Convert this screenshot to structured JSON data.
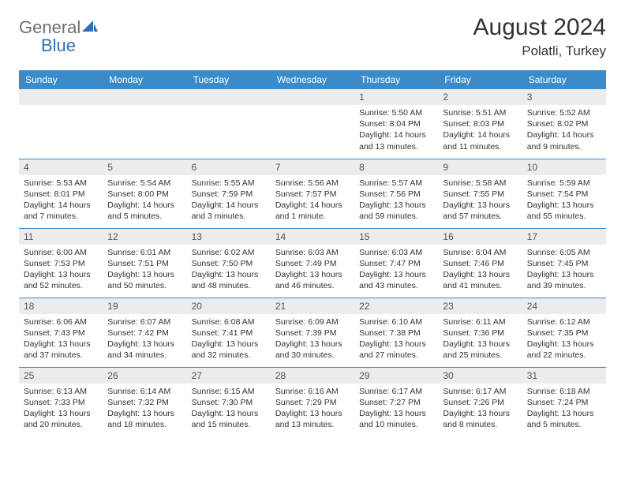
{
  "logo": {
    "text1": "General",
    "text2": "Blue"
  },
  "title": "August 2024",
  "location": "Polatli, Turkey",
  "colors": {
    "header_bg": "#3b8bca",
    "header_text": "#ffffff",
    "daynum_bg": "#ececec",
    "border": "#3b8bca",
    "logo_gray": "#6e6e6e",
    "logo_blue": "#2f6fb5"
  },
  "day_labels": [
    "Sunday",
    "Monday",
    "Tuesday",
    "Wednesday",
    "Thursday",
    "Friday",
    "Saturday"
  ],
  "weeks": [
    [
      {
        "n": "",
        "sr": "",
        "ss": "",
        "dl": ""
      },
      {
        "n": "",
        "sr": "",
        "ss": "",
        "dl": ""
      },
      {
        "n": "",
        "sr": "",
        "ss": "",
        "dl": ""
      },
      {
        "n": "",
        "sr": "",
        "ss": "",
        "dl": ""
      },
      {
        "n": "1",
        "sr": "Sunrise: 5:50 AM",
        "ss": "Sunset: 8:04 PM",
        "dl": "Daylight: 14 hours and 13 minutes."
      },
      {
        "n": "2",
        "sr": "Sunrise: 5:51 AM",
        "ss": "Sunset: 8:03 PM",
        "dl": "Daylight: 14 hours and 11 minutes."
      },
      {
        "n": "3",
        "sr": "Sunrise: 5:52 AM",
        "ss": "Sunset: 8:02 PM",
        "dl": "Daylight: 14 hours and 9 minutes."
      }
    ],
    [
      {
        "n": "4",
        "sr": "Sunrise: 5:53 AM",
        "ss": "Sunset: 8:01 PM",
        "dl": "Daylight: 14 hours and 7 minutes."
      },
      {
        "n": "5",
        "sr": "Sunrise: 5:54 AM",
        "ss": "Sunset: 8:00 PM",
        "dl": "Daylight: 14 hours and 5 minutes."
      },
      {
        "n": "6",
        "sr": "Sunrise: 5:55 AM",
        "ss": "Sunset: 7:59 PM",
        "dl": "Daylight: 14 hours and 3 minutes."
      },
      {
        "n": "7",
        "sr": "Sunrise: 5:56 AM",
        "ss": "Sunset: 7:57 PM",
        "dl": "Daylight: 14 hours and 1 minute."
      },
      {
        "n": "8",
        "sr": "Sunrise: 5:57 AM",
        "ss": "Sunset: 7:56 PM",
        "dl": "Daylight: 13 hours and 59 minutes."
      },
      {
        "n": "9",
        "sr": "Sunrise: 5:58 AM",
        "ss": "Sunset: 7:55 PM",
        "dl": "Daylight: 13 hours and 57 minutes."
      },
      {
        "n": "10",
        "sr": "Sunrise: 5:59 AM",
        "ss": "Sunset: 7:54 PM",
        "dl": "Daylight: 13 hours and 55 minutes."
      }
    ],
    [
      {
        "n": "11",
        "sr": "Sunrise: 6:00 AM",
        "ss": "Sunset: 7:53 PM",
        "dl": "Daylight: 13 hours and 52 minutes."
      },
      {
        "n": "12",
        "sr": "Sunrise: 6:01 AM",
        "ss": "Sunset: 7:51 PM",
        "dl": "Daylight: 13 hours and 50 minutes."
      },
      {
        "n": "13",
        "sr": "Sunrise: 6:02 AM",
        "ss": "Sunset: 7:50 PM",
        "dl": "Daylight: 13 hours and 48 minutes."
      },
      {
        "n": "14",
        "sr": "Sunrise: 6:03 AM",
        "ss": "Sunset: 7:49 PM",
        "dl": "Daylight: 13 hours and 46 minutes."
      },
      {
        "n": "15",
        "sr": "Sunrise: 6:03 AM",
        "ss": "Sunset: 7:47 PM",
        "dl": "Daylight: 13 hours and 43 minutes."
      },
      {
        "n": "16",
        "sr": "Sunrise: 6:04 AM",
        "ss": "Sunset: 7:46 PM",
        "dl": "Daylight: 13 hours and 41 minutes."
      },
      {
        "n": "17",
        "sr": "Sunrise: 6:05 AM",
        "ss": "Sunset: 7:45 PM",
        "dl": "Daylight: 13 hours and 39 minutes."
      }
    ],
    [
      {
        "n": "18",
        "sr": "Sunrise: 6:06 AM",
        "ss": "Sunset: 7:43 PM",
        "dl": "Daylight: 13 hours and 37 minutes."
      },
      {
        "n": "19",
        "sr": "Sunrise: 6:07 AM",
        "ss": "Sunset: 7:42 PM",
        "dl": "Daylight: 13 hours and 34 minutes."
      },
      {
        "n": "20",
        "sr": "Sunrise: 6:08 AM",
        "ss": "Sunset: 7:41 PM",
        "dl": "Daylight: 13 hours and 32 minutes."
      },
      {
        "n": "21",
        "sr": "Sunrise: 6:09 AM",
        "ss": "Sunset: 7:39 PM",
        "dl": "Daylight: 13 hours and 30 minutes."
      },
      {
        "n": "22",
        "sr": "Sunrise: 6:10 AM",
        "ss": "Sunset: 7:38 PM",
        "dl": "Daylight: 13 hours and 27 minutes."
      },
      {
        "n": "23",
        "sr": "Sunrise: 6:11 AM",
        "ss": "Sunset: 7:36 PM",
        "dl": "Daylight: 13 hours and 25 minutes."
      },
      {
        "n": "24",
        "sr": "Sunrise: 6:12 AM",
        "ss": "Sunset: 7:35 PM",
        "dl": "Daylight: 13 hours and 22 minutes."
      }
    ],
    [
      {
        "n": "25",
        "sr": "Sunrise: 6:13 AM",
        "ss": "Sunset: 7:33 PM",
        "dl": "Daylight: 13 hours and 20 minutes."
      },
      {
        "n": "26",
        "sr": "Sunrise: 6:14 AM",
        "ss": "Sunset: 7:32 PM",
        "dl": "Daylight: 13 hours and 18 minutes."
      },
      {
        "n": "27",
        "sr": "Sunrise: 6:15 AM",
        "ss": "Sunset: 7:30 PM",
        "dl": "Daylight: 13 hours and 15 minutes."
      },
      {
        "n": "28",
        "sr": "Sunrise: 6:16 AM",
        "ss": "Sunset: 7:29 PM",
        "dl": "Daylight: 13 hours and 13 minutes."
      },
      {
        "n": "29",
        "sr": "Sunrise: 6:17 AM",
        "ss": "Sunset: 7:27 PM",
        "dl": "Daylight: 13 hours and 10 minutes."
      },
      {
        "n": "30",
        "sr": "Sunrise: 6:17 AM",
        "ss": "Sunset: 7:26 PM",
        "dl": "Daylight: 13 hours and 8 minutes."
      },
      {
        "n": "31",
        "sr": "Sunrise: 6:18 AM",
        "ss": "Sunset: 7:24 PM",
        "dl": "Daylight: 13 hours and 5 minutes."
      }
    ]
  ]
}
